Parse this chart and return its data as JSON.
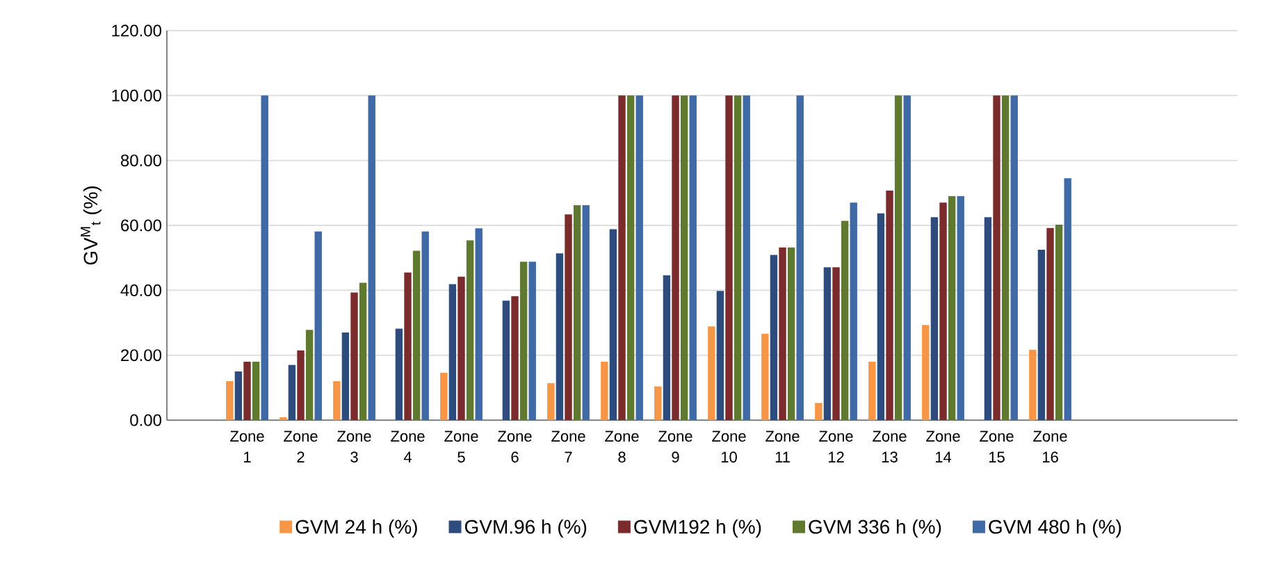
{
  "chart_data": {
    "type": "bar",
    "ylabel": "GV$^{M}$$_{t}$ (%)",
    "categories": [
      null,
      "Zone 1",
      "Zone 2",
      "Zone 3",
      "Zone 4",
      "Zone 5",
      "Zone 6",
      "Zone 7",
      "Zone 8",
      "Zone 9",
      "Zone 10",
      "Zone 11",
      "Zone 12",
      "Zone 13",
      "Zone 14",
      "Zone 15",
      "Zone 16",
      null,
      null,
      null
    ],
    "series": [
      {
        "name": "GVM 24 h (%)",
        "color": "#f79646",
        "values": [
          null,
          12.0,
          0.9,
          12.0,
          null,
          14.6,
          null,
          11.4,
          18.0,
          10.4,
          28.9,
          26.6,
          5.3,
          18.0,
          29.3,
          null,
          21.7,
          null,
          null,
          null
        ]
      },
      {
        "name": "GVM.96 h (%)",
        "color": "#2e4b7e",
        "values": [
          null,
          15.0,
          17.0,
          27.0,
          28.2,
          41.9,
          36.8,
          51.4,
          58.8,
          44.6,
          39.8,
          50.9,
          47.1,
          63.7,
          62.5,
          62.5,
          52.5,
          null,
          null,
          null
        ]
      },
      {
        "name": "GVM192 h (%)",
        "color": "#7b2b2b",
        "values": [
          null,
          18.0,
          21.5,
          39.3,
          45.5,
          44.2,
          38.2,
          63.4,
          100,
          100,
          100,
          53.2,
          47.1,
          70.7,
          67.0,
          100,
          59.2,
          null,
          null,
          null
        ]
      },
      {
        "name": "GVM 336 h (%)",
        "color": "#5f7a2f",
        "values": [
          null,
          18.0,
          27.8,
          42.3,
          52.2,
          55.4,
          48.8,
          66.2,
          100,
          100,
          100,
          53.2,
          61.4,
          100,
          69.0,
          100,
          60.2,
          null,
          null,
          null
        ]
      },
      {
        "name": "GVM 480 h (%)",
        "color": "#3f6aa5",
        "values": [
          null,
          100,
          58.1,
          100,
          58.1,
          59.1,
          48.8,
          66.2,
          100,
          100,
          100,
          100,
          67.0,
          100,
          69.0,
          100,
          74.5,
          null,
          null,
          null
        ]
      }
    ],
    "ylim": [
      0,
      120
    ],
    "yticks": [
      {
        "value": 0,
        "label": "0.00"
      },
      {
        "value": 20,
        "label": "20.00"
      },
      {
        "value": 40,
        "label": "40.00"
      },
      {
        "value": 60,
        "label": "60.00"
      },
      {
        "value": 80,
        "label": "80.00"
      },
      {
        "value": 100,
        "label": "100.00"
      },
      {
        "value": 120,
        "label": "120.00"
      }
    ],
    "grid": "y",
    "legend": "bottom"
  }
}
